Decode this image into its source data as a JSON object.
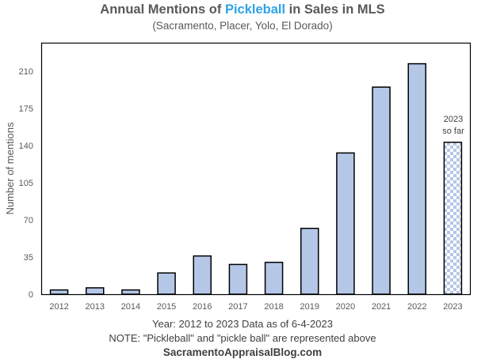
{
  "chart_data": {
    "type": "bar",
    "title_parts": [
      "Annual Mentions of ",
      "Pickleball",
      " in Sales in MLS"
    ],
    "subtitle": "(Sacramento,  Placer, Yolo, El Dorado)",
    "xlabel": "Year: 2012  to 2023  Data as of 6-4-2023",
    "ylabel": "Number of mentions",
    "categories": [
      "2012",
      "2013",
      "2014",
      "2015",
      "2016",
      "2017",
      "2018",
      "2019",
      "2020",
      "2021",
      "2022",
      "2023"
    ],
    "values": [
      4,
      6,
      4,
      20,
      36,
      28,
      30,
      62,
      133,
      195,
      217,
      143
    ],
    "partial_year_category": "2023",
    "annotation": [
      "2023",
      "so far"
    ],
    "yticks": [
      0,
      35,
      70,
      105,
      140,
      175,
      210
    ],
    "ylim": [
      0,
      238
    ],
    "grid": false,
    "legend": "none",
    "colors": {
      "bar": "#b4c7e7",
      "outline": "#000000",
      "highlight": "#2ea3e6"
    }
  },
  "footer": {
    "note": "NOTE: \"Pickleball\" and \"pickle ball\" are represented above",
    "source": "SacramentoAppraisalBlog.com"
  }
}
